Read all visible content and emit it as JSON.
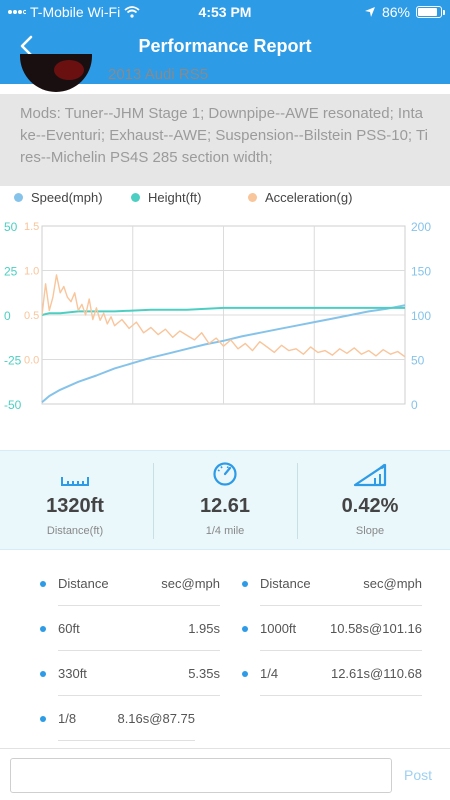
{
  "status_bar": {
    "carrier": "T-Mobile Wi-Fi",
    "time": "4:53 PM",
    "battery": "86%",
    "battery_level": 0.86
  },
  "nav": {
    "title": "Performance Report",
    "back_icon": "chevron-left-icon"
  },
  "car": {
    "name": "2013 Audi RS5"
  },
  "mods": "Mods: Tuner--JHM Stage 1; Downpipe--AWE resonated; Intake--Eventuri; Exhaust--AWE; Suspension--Bilstein PSS-10; Tires--Michelin PS4S 285 section width;",
  "colors": {
    "speed": "#85c3ea",
    "height": "#4ccfc2",
    "acceleration": "#f9c59b",
    "accent": "#2d9be6"
  },
  "chart_data": {
    "type": "line",
    "legend": [
      "Speed(mph)",
      "Height(ft)",
      "Acceleration(g)"
    ],
    "legend_position": "top",
    "grid": true,
    "axes": {
      "height_left": {
        "ticks": [
          "50",
          "25",
          "0",
          "-25",
          "-50"
        ],
        "range": [
          -50,
          50
        ]
      },
      "accel_left": {
        "ticks": [
          "1.5",
          "1.0",
          "0.5",
          "0.0"
        ],
        "range": [
          -0.5,
          1.5
        ]
      },
      "speed_right": {
        "ticks": [
          "200",
          "150",
          "100",
          "50",
          "0"
        ],
        "range": [
          0,
          200
        ]
      }
    },
    "series": [
      {
        "name": "Speed(mph)",
        "x": [
          0,
          0.02,
          0.05,
          0.1,
          0.15,
          0.2,
          0.25,
          0.3,
          0.35,
          0.4,
          0.45,
          0.5,
          0.55,
          0.6,
          0.65,
          0.7,
          0.75,
          0.8,
          0.85,
          0.9,
          0.95,
          1.0
        ],
        "values": [
          2,
          9,
          16,
          25,
          32,
          40,
          46,
          52,
          57,
          62,
          67,
          71,
          76,
          80,
          84,
          88,
          92,
          96,
          100,
          104,
          107,
          111
        ]
      },
      {
        "name": "Height(ft)",
        "x": [
          0,
          0.02,
          0.05,
          0.1,
          0.2,
          0.3,
          0.4,
          0.5,
          0.6,
          0.7,
          0.8,
          0.9,
          1.0
        ],
        "values": [
          0,
          1,
          1,
          2,
          2,
          3,
          3,
          4,
          4,
          4,
          4,
          4,
          4
        ]
      },
      {
        "name": "Acceleration(g)",
        "x": [
          0,
          0.01,
          0.02,
          0.03,
          0.04,
          0.05,
          0.06,
          0.07,
          0.08,
          0.09,
          0.1,
          0.11,
          0.12,
          0.13,
          0.14,
          0.15,
          0.16,
          0.17,
          0.18,
          0.19,
          0.2,
          0.22,
          0.24,
          0.26,
          0.28,
          0.3,
          0.32,
          0.34,
          0.36,
          0.38,
          0.4,
          0.42,
          0.44,
          0.46,
          0.48,
          0.5,
          0.52,
          0.54,
          0.56,
          0.58,
          0.6,
          0.62,
          0.64,
          0.66,
          0.68,
          0.7,
          0.72,
          0.74,
          0.76,
          0.78,
          0.8,
          0.82,
          0.84,
          0.86,
          0.88,
          0.9,
          0.92,
          0.94,
          0.96,
          0.98,
          1.0
        ],
        "values": [
          0.5,
          0.85,
          0.55,
          0.7,
          0.95,
          0.75,
          0.82,
          0.7,
          0.65,
          0.75,
          0.55,
          0.62,
          0.5,
          0.68,
          0.45,
          0.58,
          0.44,
          0.52,
          0.4,
          0.48,
          0.38,
          0.45,
          0.35,
          0.42,
          0.3,
          0.36,
          0.28,
          0.34,
          0.25,
          0.32,
          0.27,
          0.22,
          0.3,
          0.18,
          0.24,
          0.15,
          0.22,
          0.12,
          0.18,
          0.1,
          0.2,
          0.14,
          0.08,
          0.16,
          0.1,
          0.12,
          0.06,
          0.14,
          0.08,
          0.1,
          0.05,
          0.12,
          0.07,
          0.13,
          0.06,
          0.1,
          0.04,
          0.11,
          0.06,
          0.09,
          0.03
        ]
      }
    ]
  },
  "stats": [
    {
      "value": "1320ft",
      "label": "Distance(ft)",
      "icon": "ruler-icon"
    },
    {
      "value": "12.61",
      "label": "1/4 mile",
      "icon": "speedometer-icon"
    },
    {
      "value": "0.42%",
      "label": "Slope",
      "icon": "slope-icon"
    }
  ],
  "splits": {
    "header_left": {
      "key": "Distance",
      "value": "sec@mph"
    },
    "header_right": {
      "key": "Distance",
      "value": "sec@mph"
    },
    "rows": [
      {
        "key": "60ft",
        "value": "1.95s"
      },
      {
        "key": "1000ft",
        "value": "10.58s@101.16"
      },
      {
        "key": "330ft",
        "value": "5.35s"
      },
      {
        "key": "1/4",
        "value": "12.61s@110.68"
      },
      {
        "key": "1/8",
        "value": "8.16s@87.75"
      }
    ]
  },
  "comment": {
    "placeholder": "",
    "post_label": "Post"
  }
}
